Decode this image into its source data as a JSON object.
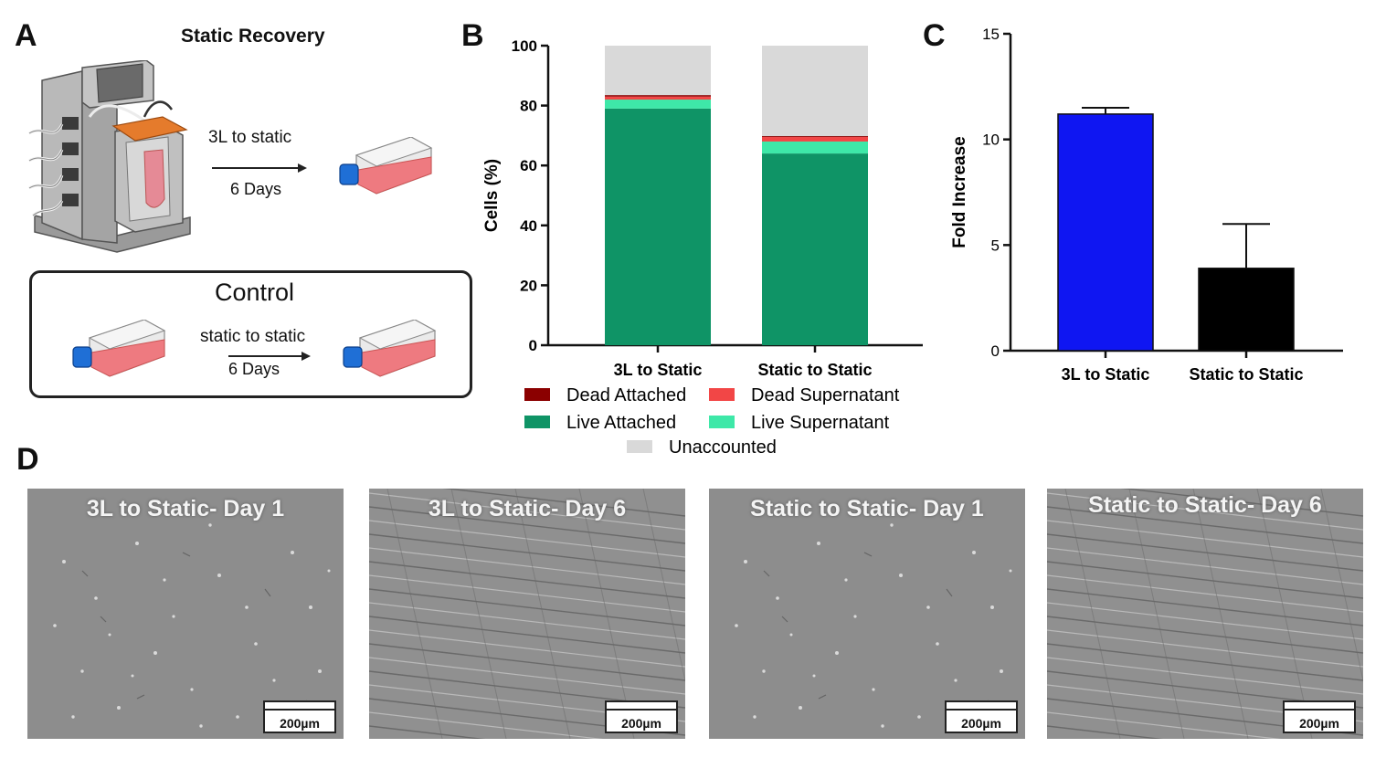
{
  "panel_a": {
    "letter": "A",
    "title": "Static Recovery",
    "arrow_top_text": "3L to static",
    "arrow_bottom_text": "6 Days",
    "control": {
      "title": "Control",
      "arrow_top_text": "static to static",
      "arrow_bottom_text": "6 Days"
    }
  },
  "panel_b": {
    "letter": "B"
  },
  "panel_c": {
    "letter": "C"
  },
  "panel_d": {
    "letter": "D",
    "images": [
      {
        "caption": "3L to Static- Day 1",
        "scale": "200µm"
      },
      {
        "caption": "3L to Static- Day 6",
        "scale": "200µm"
      },
      {
        "caption": "Static to Static- Day 1",
        "scale": "200µm"
      },
      {
        "caption": "Static to Static- Day 6",
        "scale": "200µm"
      }
    ]
  },
  "colors": {
    "dead_attached": "#8b0000",
    "dead_supernatant": "#f24646",
    "live_attached": "#0f9466",
    "live_supernatant": "#3ee8a8",
    "unaccounted": "#d9d9d9",
    "bar_3l": "#0f16f2",
    "bar_static": "#000000"
  },
  "chart_data": [
    {
      "id": "B",
      "type": "bar",
      "stacked": true,
      "ylabel": "Cells (%)",
      "ylim": [
        0,
        100
      ],
      "yticks": [
        0,
        20,
        40,
        60,
        80,
        100
      ],
      "categories": [
        "3L to Static",
        "Static to Static"
      ],
      "series": [
        {
          "name": "Live Attached",
          "color_key": "live_attached",
          "values": [
            79,
            64
          ]
        },
        {
          "name": "Live Supernatant",
          "color_key": "live_supernatant",
          "values": [
            3,
            4
          ]
        },
        {
          "name": "Dead Supernatant",
          "color_key": "dead_supernatant",
          "values": [
            1,
            1.5
          ]
        },
        {
          "name": "Dead Attached",
          "color_key": "dead_attached",
          "values": [
            0.5,
            0.3
          ]
        },
        {
          "name": "Unaccounted",
          "color_key": "unaccounted",
          "values": [
            16.5,
            30.2
          ]
        }
      ],
      "legend": [
        {
          "name": "Dead Attached",
          "color_key": "dead_attached"
        },
        {
          "name": "Dead Supernatant",
          "color_key": "dead_supernatant"
        },
        {
          "name": "Live Attached",
          "color_key": "live_attached"
        },
        {
          "name": "Live Supernatant",
          "color_key": "live_supernatant"
        },
        {
          "name": "Unaccounted",
          "color_key": "unaccounted"
        }
      ]
    },
    {
      "id": "C",
      "type": "bar",
      "ylabel": "Fold  Increase",
      "ylim": [
        0,
        15
      ],
      "yticks": [
        0,
        5,
        10,
        15
      ],
      "categories": [
        "3L to Static",
        "Static to Static"
      ],
      "values": [
        11.2,
        3.9
      ],
      "errors": [
        0.3,
        2.1
      ],
      "color_keys": [
        "bar_3l",
        "bar_static"
      ]
    }
  ]
}
